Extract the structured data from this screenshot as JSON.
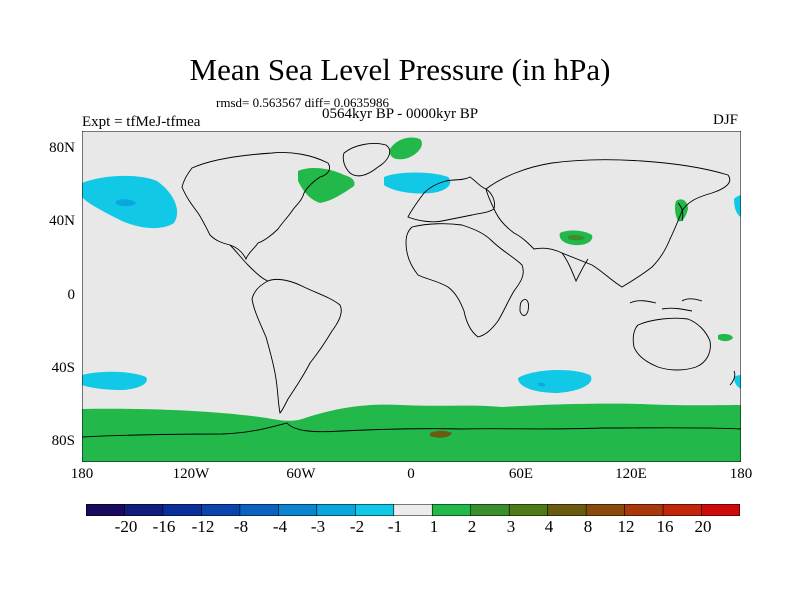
{
  "title": "Mean Sea Level Pressure (in hPa)",
  "stats": "rmsd= 0.563567 diff= 0.0635986",
  "period": "0564kyr BP - 0000kyr BP",
  "experiment": "Expt = tfMeJ-tfmea",
  "season": "DJF",
  "axes": {
    "y_ticks": [
      "80N",
      "40N",
      "0",
      "40S",
      "80S"
    ],
    "x_ticks": [
      "180",
      "120W",
      "60W",
      "0",
      "60E",
      "120E",
      "180"
    ]
  },
  "colorbar": {
    "labels": [
      "-20",
      "-16",
      "-12",
      "-8",
      "-4",
      "-3",
      "-2",
      "-1",
      "1",
      "2",
      "3",
      "4",
      "8",
      "12",
      "16",
      "20"
    ],
    "colors": [
      "#1a0a5e",
      "#101d7e",
      "#0b2f9a",
      "#0a45ad",
      "#0c62bf",
      "#0a84cf",
      "#0aa6de",
      "#11c9e6",
      "#ececec",
      "#23b84a",
      "#3a8f2c",
      "#4f7a18",
      "#6b5b10",
      "#8a4a0c",
      "#a9390b",
      "#c2260b",
      "#cf0a0a"
    ]
  },
  "map_colors": {
    "background": "#e8e8e8",
    "positive_light": "#23b84a",
    "positive_mid": "#3a8f2c",
    "positive_brown": "#6b5b10",
    "negative_light": "#11c9e6",
    "negative_mid": "#0aa6de",
    "coastline": "#000000"
  }
}
